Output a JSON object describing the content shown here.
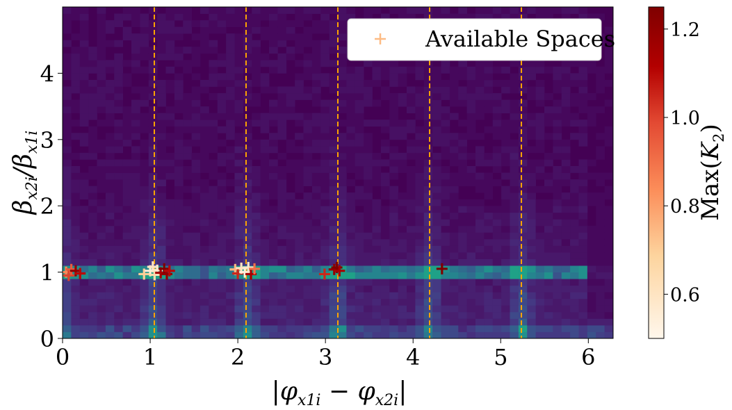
{
  "chart_data": {
    "type": "heatmap",
    "x_axis": {
      "label": "|φ_x1i − φ_x2i|",
      "range": [
        0,
        6.283
      ],
      "ticks": [
        0,
        1,
        2,
        3,
        4,
        5,
        6
      ],
      "tick_labels": [
        "0",
        "1",
        "2",
        "3",
        "4",
        "5",
        "6"
      ]
    },
    "y_axis": {
      "label": "β_x2i/β_x1i",
      "range": [
        0,
        5
      ],
      "ticks": [
        0,
        1,
        2,
        3,
        4
      ],
      "tick_labels": [
        "0",
        "1",
        "2",
        "3",
        "4"
      ]
    },
    "colorbar": {
      "label": "Max(K_2)",
      "range": [
        0.5,
        1.25
      ],
      "ticks": [
        0.6,
        0.8,
        1.0,
        1.2
      ],
      "tick_labels": [
        "0.6",
        "0.8",
        "1.0",
        "1.2"
      ],
      "colormap": "OrRd"
    },
    "vertical_lines": {
      "x": [
        1.047,
        2.094,
        3.1416,
        4.189,
        5.236
      ],
      "color": "#ffa500",
      "style": "dashed"
    },
    "legend": {
      "placement": "top-right",
      "entries": [
        "Available Spaces"
      ],
      "marker_color": "#fdbb84"
    },
    "available_spaces": [
      {
        "x": 0.04,
        "y": 1.0,
        "k": 0.85
      },
      {
        "x": 0.07,
        "y": 0.95,
        "k": 1.0
      },
      {
        "x": 0.1,
        "y": 1.04,
        "k": 0.95
      },
      {
        "x": 0.15,
        "y": 1.02,
        "k": 1.2
      },
      {
        "x": 0.2,
        "y": 0.98,
        "k": 1.1
      },
      {
        "x": 0.93,
        "y": 0.97,
        "k": 0.7
      },
      {
        "x": 1.0,
        "y": 1.02,
        "k": 0.55
      },
      {
        "x": 1.03,
        "y": 1.08,
        "k": 0.6
      },
      {
        "x": 1.05,
        "y": 0.96,
        "k": 0.65
      },
      {
        "x": 1.08,
        "y": 1.03,
        "k": 0.58
      },
      {
        "x": 1.12,
        "y": 0.99,
        "k": 1.15
      },
      {
        "x": 1.16,
        "y": 1.05,
        "k": 1.25
      },
      {
        "x": 1.19,
        "y": 0.97,
        "k": 1.2
      },
      {
        "x": 1.22,
        "y": 1.02,
        "k": 1.1
      },
      {
        "x": 1.97,
        "y": 1.04,
        "k": 0.75
      },
      {
        "x": 2.0,
        "y": 0.98,
        "k": 1.05
      },
      {
        "x": 2.04,
        "y": 1.06,
        "k": 0.6
      },
      {
        "x": 2.08,
        "y": 1.0,
        "k": 0.55
      },
      {
        "x": 2.12,
        "y": 1.07,
        "k": 0.58
      },
      {
        "x": 2.15,
        "y": 0.97,
        "k": 1.15
      },
      {
        "x": 2.19,
        "y": 1.05,
        "k": 0.9
      },
      {
        "x": 2.99,
        "y": 0.97,
        "k": 1.05
      },
      {
        "x": 3.1,
        "y": 1.04,
        "k": 1.2
      },
      {
        "x": 3.13,
        "y": 1.07,
        "k": 1.25
      },
      {
        "x": 3.16,
        "y": 1.02,
        "k": 1.15
      },
      {
        "x": 4.33,
        "y": 1.05,
        "k": 1.25
      }
    ]
  }
}
